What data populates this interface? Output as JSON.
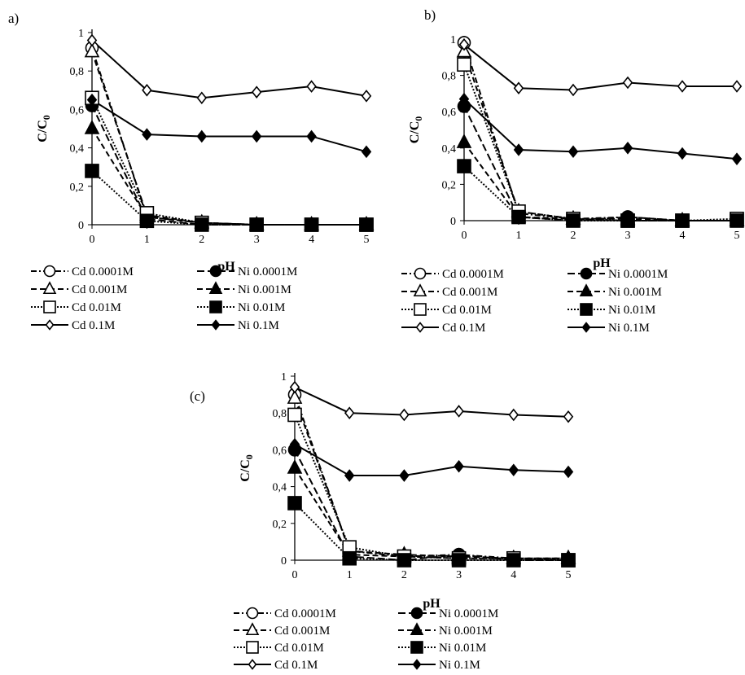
{
  "chart_data": [
    {
      "type": "line",
      "panel_label": "a)",
      "xlabel": "pH",
      "ylabel_main": "C/C",
      "ylabel_sub": "0",
      "x_ticks": [
        "0",
        "1",
        "2",
        "3",
        "4",
        "5"
      ],
      "y_ticks": [
        "0",
        "0,2",
        "0,4",
        "0,6",
        "0,8",
        "1"
      ],
      "x": [
        0,
        1,
        2,
        3,
        4,
        5
      ],
      "ylim": [
        0,
        1
      ],
      "legend_placement": "bottom",
      "series": [
        {
          "name": "Cd 0.0001M",
          "metal": "Cd",
          "marker": "circle",
          "filled": false,
          "dash": "7,3,2,3",
          "values": [
            0.92,
            0.04,
            0.01,
            0.0,
            0.0,
            0.0
          ]
        },
        {
          "name": "Ni 0.0001M",
          "metal": "Ni",
          "marker": "circle",
          "filled": true,
          "dash": "9,4",
          "values": [
            0.62,
            0.03,
            0.0,
            0.0,
            0.0,
            0.0
          ]
        },
        {
          "name": "Cd 0.001M",
          "metal": "Cd",
          "marker": "triangle",
          "filled": false,
          "dash": "7,4",
          "values": [
            0.9,
            0.05,
            0.01,
            0.0,
            0.0,
            0.0
          ]
        },
        {
          "name": "Ni 0.001M",
          "metal": "Ni",
          "marker": "triangle",
          "filled": true,
          "dash": "7,4",
          "values": [
            0.5,
            0.04,
            0.01,
            0.0,
            0.0,
            0.0
          ]
        },
        {
          "name": "Cd 0.01M",
          "metal": "Cd",
          "marker": "square",
          "filled": false,
          "dash": "2,2",
          "values": [
            0.66,
            0.06,
            0.01,
            0.0,
            0.0,
            0.0
          ]
        },
        {
          "name": "Ni 0.01M",
          "metal": "Ni",
          "marker": "square",
          "filled": true,
          "dash": "2,2",
          "values": [
            0.28,
            0.02,
            0.0,
            0.0,
            0.0,
            0.0
          ]
        },
        {
          "name": "Cd 0.1M",
          "metal": "Cd",
          "marker": "diamond",
          "filled": false,
          "dash": "",
          "values": [
            0.96,
            0.7,
            0.66,
            0.69,
            0.72,
            0.67
          ]
        },
        {
          "name": "Ni 0.1M",
          "metal": "Ni",
          "marker": "diamond",
          "filled": true,
          "dash": "",
          "values": [
            0.65,
            0.47,
            0.46,
            0.46,
            0.46,
            0.38
          ]
        }
      ]
    },
    {
      "type": "line",
      "panel_label": "b)",
      "xlabel": "pH",
      "ylabel_main": "C/C",
      "ylabel_sub": "0",
      "x_ticks": [
        "0",
        "1",
        "2",
        "3",
        "4",
        "5"
      ],
      "y_ticks": [
        "0",
        "0,2",
        "0,4",
        "0,6",
        "0,8",
        "1"
      ],
      "x": [
        0,
        1,
        2,
        3,
        4,
        5
      ],
      "ylim": [
        0,
        1
      ],
      "legend_placement": "bottom",
      "series": [
        {
          "name": "Cd 0.0001M",
          "metal": "Cd",
          "marker": "circle",
          "filled": false,
          "dash": "7,3,2,3",
          "values": [
            0.98,
            0.04,
            0.01,
            0.02,
            0.0,
            0.0
          ]
        },
        {
          "name": "Ni 0.0001M",
          "metal": "Ni",
          "marker": "circle",
          "filled": true,
          "dash": "9,4",
          "values": [
            0.63,
            0.02,
            0.0,
            0.02,
            0.0,
            0.0
          ]
        },
        {
          "name": "Cd 0.001M",
          "metal": "Cd",
          "marker": "triangle",
          "filled": false,
          "dash": "7,4",
          "values": [
            0.93,
            0.05,
            0.01,
            0.01,
            0.0,
            0.0
          ]
        },
        {
          "name": "Ni 0.001M",
          "metal": "Ni",
          "marker": "triangle",
          "filled": true,
          "dash": "7,4",
          "values": [
            0.43,
            0.02,
            0.01,
            0.0,
            0.0,
            0.0
          ]
        },
        {
          "name": "Cd 0.01M",
          "metal": "Cd",
          "marker": "square",
          "filled": false,
          "dash": "2,2",
          "values": [
            0.86,
            0.05,
            0.01,
            0.0,
            0.0,
            0.01
          ]
        },
        {
          "name": "Ni 0.01M",
          "metal": "Ni",
          "marker": "square",
          "filled": true,
          "dash": "2,2",
          "values": [
            0.3,
            0.02,
            0.0,
            0.0,
            0.0,
            0.0
          ]
        },
        {
          "name": "Cd 0.1M",
          "metal": "Cd",
          "marker": "diamond",
          "filled": false,
          "dash": "",
          "values": [
            0.97,
            0.73,
            0.72,
            0.76,
            0.74,
            0.74
          ]
        },
        {
          "name": "Ni 0.1M",
          "metal": "Ni",
          "marker": "diamond",
          "filled": true,
          "dash": "",
          "values": [
            0.67,
            0.39,
            0.38,
            0.4,
            0.37,
            0.34
          ]
        }
      ]
    },
    {
      "type": "line",
      "panel_label": "(c)",
      "xlabel": "pH",
      "ylabel_main": "C/C",
      "ylabel_sub": "0",
      "x_ticks": [
        "0",
        "1",
        "2",
        "3",
        "4",
        "5"
      ],
      "y_ticks": [
        "0",
        "0,2",
        "0,4",
        "0,6",
        "0,8",
        "1"
      ],
      "x": [
        0,
        1,
        2,
        3,
        4,
        5
      ],
      "ylim": [
        0,
        1
      ],
      "legend_placement": "bottom",
      "series": [
        {
          "name": "Cd 0.0001M",
          "metal": "Cd",
          "marker": "circle",
          "filled": false,
          "dash": "7,3,2,3",
          "values": [
            0.9,
            0.05,
            0.02,
            0.03,
            0.01,
            0.0
          ]
        },
        {
          "name": "Ni 0.0001M",
          "metal": "Ni",
          "marker": "circle",
          "filled": true,
          "dash": "9,4",
          "values": [
            0.6,
            0.02,
            0.0,
            0.03,
            0.0,
            0.0
          ]
        },
        {
          "name": "Cd 0.001M",
          "metal": "Cd",
          "marker": "triangle",
          "filled": false,
          "dash": "7,4",
          "values": [
            0.88,
            0.05,
            0.03,
            0.02,
            0.01,
            0.01
          ]
        },
        {
          "name": "Ni 0.001M",
          "metal": "Ni",
          "marker": "triangle",
          "filled": true,
          "dash": "7,4",
          "values": [
            0.5,
            0.03,
            0.02,
            0.01,
            0.01,
            0.01
          ]
        },
        {
          "name": "Cd 0.01M",
          "metal": "Cd",
          "marker": "square",
          "filled": false,
          "dash": "2,2",
          "values": [
            0.79,
            0.07,
            0.02,
            0.01,
            0.01,
            0.0
          ]
        },
        {
          "name": "Ni 0.01M",
          "metal": "Ni",
          "marker": "square",
          "filled": true,
          "dash": "2,2",
          "values": [
            0.31,
            0.01,
            0.0,
            0.0,
            0.0,
            0.0
          ]
        },
        {
          "name": "Cd 0.1M",
          "metal": "Cd",
          "marker": "diamond",
          "filled": false,
          "dash": "",
          "values": [
            0.94,
            0.8,
            0.79,
            0.81,
            0.79,
            0.78
          ]
        },
        {
          "name": "Ni 0.1M",
          "metal": "Ni",
          "marker": "diamond",
          "filled": true,
          "dash": "",
          "values": [
            0.63,
            0.46,
            0.46,
            0.51,
            0.49,
            0.48
          ]
        }
      ]
    }
  ]
}
